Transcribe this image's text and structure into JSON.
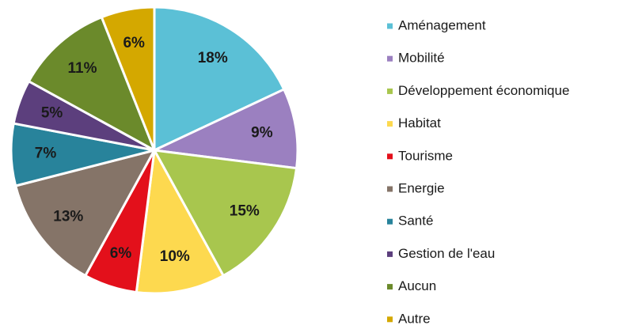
{
  "chart_data": {
    "type": "pie",
    "categories": [
      "Aménagement",
      "Mobilité",
      "Développement économique",
      "Habitat",
      "Tourisme",
      "Energie",
      "Santé",
      "Gestion de l'eau",
      "Aucun",
      "Autre"
    ],
    "values": [
      18,
      9,
      15,
      10,
      6,
      13,
      7,
      5,
      11,
      6
    ],
    "value_labels": [
      "18%",
      "9%",
      "15%",
      "10%",
      "6%",
      "13%",
      "7%",
      "5%",
      "11%",
      "6%"
    ],
    "colors": [
      "#5bc0d6",
      "#9b80c0",
      "#a8c64e",
      "#fdd94f",
      "#e3101b",
      "#857468",
      "#28839b",
      "#5c3f7d",
      "#6b8a2b",
      "#d4a800"
    ],
    "legend": "right"
  }
}
